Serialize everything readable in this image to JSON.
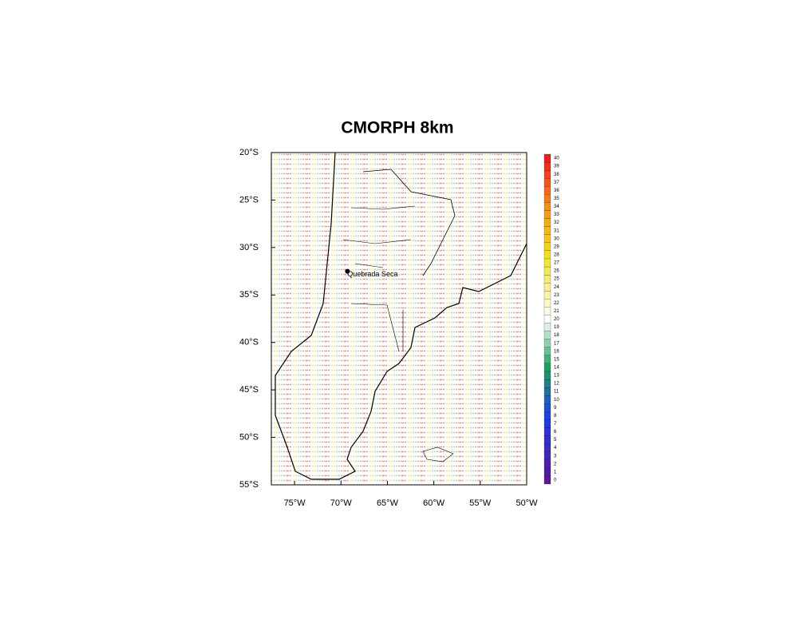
{
  "title": "CMORPH 8km",
  "map": {
    "lon_range": [
      -77.5,
      -50
    ],
    "lat_range": [
      -55,
      -20
    ],
    "lon_ticks": [
      {
        "value": -75,
        "label": "75°W"
      },
      {
        "value": -70,
        "label": "70°W"
      },
      {
        "value": -65,
        "label": "65°W"
      },
      {
        "value": -60,
        "label": "60°W"
      },
      {
        "value": -55,
        "label": "55°W"
      },
      {
        "value": -50,
        "label": "50°W"
      }
    ],
    "lat_ticks": [
      {
        "value": -20,
        "label": "20°S"
      },
      {
        "value": -25,
        "label": "25°S"
      },
      {
        "value": -30,
        "label": "30°S"
      },
      {
        "value": -35,
        "label": "35°S"
      },
      {
        "value": -40,
        "label": "40°S"
      },
      {
        "value": -45,
        "label": "45°S"
      },
      {
        "value": -50,
        "label": "50°S"
      },
      {
        "value": -55,
        "label": "55°S"
      }
    ],
    "places": [
      {
        "name": "Quebrada Seca",
        "lon": -69.3,
        "lat": -32.5
      }
    ]
  },
  "colorbar": {
    "levels": [
      0,
      1,
      2,
      3,
      4,
      5,
      6,
      7,
      8,
      9,
      10,
      11,
      12,
      13,
      14,
      15,
      16,
      17,
      18,
      19,
      20,
      21,
      22,
      23,
      24,
      25,
      26,
      27,
      28,
      29,
      30,
      31,
      32,
      33,
      34,
      35,
      36,
      37,
      38,
      39,
      40
    ]
  }
}
